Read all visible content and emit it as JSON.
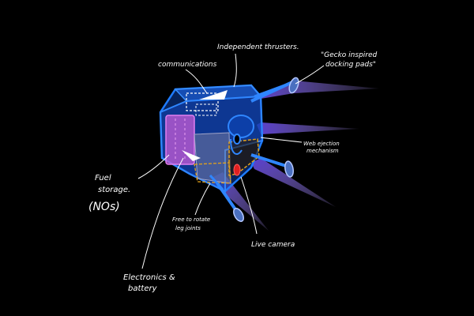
{
  "labels": {
    "independent_thrusters": "Independent thrusters.",
    "docking_pads_line1": "\"Gecko inspired",
    "docking_pads_line2": "docking pads\"",
    "communications": "communications",
    "web_ejection_line1": "Web ejection",
    "web_ejection_line2": "mechanism",
    "fuel_line1": "Fuel",
    "fuel_line2": "storage.",
    "fuel_line3": "(NOs)",
    "leg_joints_line1": "Free to rotate",
    "leg_joints_line2": "leg joints",
    "live_camera": "Live camera",
    "electronics_line1": "Electronics &",
    "electronics_line2": "battery"
  },
  "colors": {
    "background": "#000000",
    "chassis_blue": "#1e7bff",
    "fuel_tank": "#c85cd6",
    "electronics_box": "#e3a21a",
    "thruster_plume": "#9b7ff0",
    "camera_red": "#e02020",
    "annotation": "#ffffff"
  }
}
